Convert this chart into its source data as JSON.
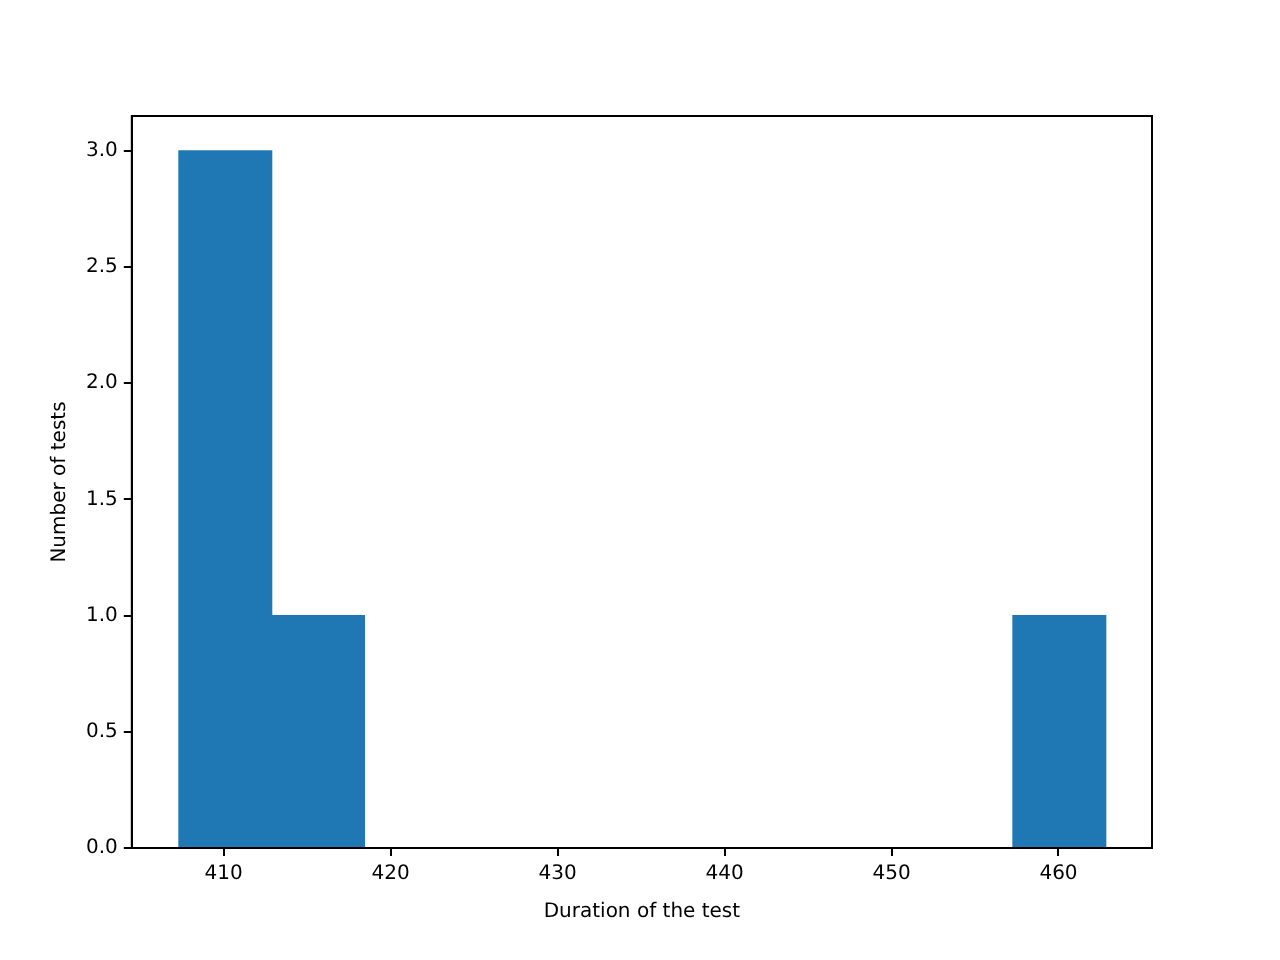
{
  "chart_data": {
    "type": "histogram",
    "xlabel": "Duration of the test",
    "ylabel": "Number of tests",
    "bins": [
      407.3,
      412.9,
      418.4,
      424.0,
      429.5,
      435.1,
      440.6,
      446.2,
      451.7,
      457.3,
      462.8
    ],
    "values": [
      3,
      1,
      0,
      0,
      0,
      0,
      0,
      0,
      0,
      1
    ],
    "color": "#1f77b4",
    "xlim": [
      404.5,
      465.6
    ],
    "xticks": [
      410,
      420,
      430,
      440,
      450,
      460
    ],
    "ylim": [
      0,
      3.15
    ],
    "yticks": [
      {
        "value": 0,
        "label": "0.0"
      },
      {
        "value": 0.5,
        "label": "0.5"
      },
      {
        "value": 1,
        "label": "1.0"
      },
      {
        "value": 1.5,
        "label": "1.5"
      },
      {
        "value": 2,
        "label": "2.0"
      },
      {
        "value": 2.5,
        "label": "2.5"
      },
      {
        "value": 3,
        "label": "3.0"
      }
    ],
    "grid": false
  }
}
